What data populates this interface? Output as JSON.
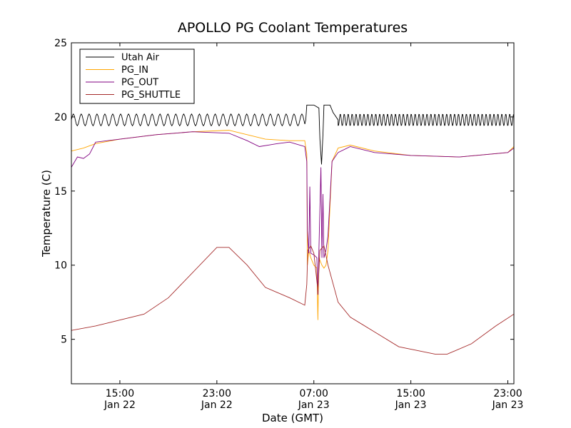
{
  "chart_data": {
    "type": "line",
    "title": "APOLLO PG Coolant Temperatures",
    "xlabel": "Date (GMT)",
    "ylabel": "Temperature (C)",
    "xlim": [
      "2013-01-22T11:00",
      "2013-01-23T23:30"
    ],
    "ylim": [
      2,
      25
    ],
    "grid": false,
    "legend_position": "top-left",
    "x_ticks": [
      {
        "time": "2013-01-22T15:00",
        "line1": "15:00",
        "line2": "Jan 22"
      },
      {
        "time": "2013-01-22T23:00",
        "line1": "23:00",
        "line2": "Jan 22"
      },
      {
        "time": "2013-01-23T07:00",
        "line1": "07:00",
        "line2": "Jan 23"
      },
      {
        "time": "2013-01-23T15:00",
        "line1": "15:00",
        "line2": "Jan 23"
      },
      {
        "time": "2013-01-23T23:00",
        "line1": "23:00",
        "line2": "Jan 23"
      }
    ],
    "y_ticks": [
      5,
      10,
      15,
      20,
      25
    ],
    "series": [
      {
        "name": "Utah Air",
        "color": "#000000",
        "oscillation": {
          "period_hours": 0.65,
          "amplitude": 0.4
        },
        "points": [
          [
            "2013-01-22T11:00",
            19.8
          ],
          [
            "2013-01-23T06:20",
            19.8
          ],
          [
            "2013-01-23T06:25",
            20.8
          ],
          [
            "2013-01-23T07:00",
            20.8
          ],
          [
            "2013-01-23T07:25",
            20.6
          ],
          [
            "2013-01-23T07:30",
            18.5
          ],
          [
            "2013-01-23T07:38",
            16.8
          ],
          [
            "2013-01-23T07:45",
            18.8
          ],
          [
            "2013-01-23T07:50",
            20.8
          ],
          [
            "2013-01-23T08:20",
            20.8
          ],
          [
            "2013-01-23T08:35",
            20.3
          ],
          [
            "2013-01-23T09:00",
            19.8
          ],
          [
            "2013-01-23T23:30",
            19.8
          ]
        ]
      },
      {
        "name": "PG_IN",
        "color": "#FFA500",
        "points": [
          [
            "2013-01-22T11:00",
            17.7
          ],
          [
            "2013-01-22T12:00",
            17.9
          ],
          [
            "2013-01-22T13:00",
            18.2
          ],
          [
            "2013-01-22T15:00",
            18.5
          ],
          [
            "2013-01-22T18:00",
            18.8
          ],
          [
            "2013-01-22T21:00",
            19.0
          ],
          [
            "2013-01-23T00:00",
            19.1
          ],
          [
            "2013-01-23T01:30",
            18.8
          ],
          [
            "2013-01-23T03:00",
            18.5
          ],
          [
            "2013-01-23T05:00",
            18.4
          ],
          [
            "2013-01-23T06:15",
            18.4
          ],
          [
            "2013-01-23T06:25",
            17.5
          ],
          [
            "2013-01-23T06:28",
            10.0
          ],
          [
            "2013-01-23T06:35",
            11.0
          ],
          [
            "2013-01-23T06:45",
            10.5
          ],
          [
            "2013-01-23T07:00",
            10.0
          ],
          [
            "2013-01-23T07:15",
            9.8
          ],
          [
            "2013-01-23T07:20",
            6.3
          ],
          [
            "2013-01-23T07:25",
            10.5
          ],
          [
            "2013-01-23T07:40",
            10.0
          ],
          [
            "2013-01-23T07:50",
            9.8
          ],
          [
            "2013-01-23T08:00",
            10.0
          ],
          [
            "2013-01-23T08:10",
            11.0
          ],
          [
            "2013-01-23T08:30",
            17.0
          ],
          [
            "2013-01-23T09:00",
            17.9
          ],
          [
            "2013-01-23T10:00",
            18.1
          ],
          [
            "2013-01-23T12:00",
            17.7
          ],
          [
            "2013-01-23T15:00",
            17.4
          ],
          [
            "2013-01-23T19:00",
            17.3
          ],
          [
            "2013-01-23T23:00",
            17.6
          ],
          [
            "2013-01-23T23:30",
            18.0
          ]
        ]
      },
      {
        "name": "PG_OUT",
        "color": "#800080",
        "points": [
          [
            "2013-01-22T11:00",
            16.6
          ],
          [
            "2013-01-22T11:30",
            17.3
          ],
          [
            "2013-01-22T12:00",
            17.2
          ],
          [
            "2013-01-22T12:30",
            17.5
          ],
          [
            "2013-01-22T13:00",
            18.3
          ],
          [
            "2013-01-22T15:00",
            18.5
          ],
          [
            "2013-01-22T18:00",
            18.8
          ],
          [
            "2013-01-22T21:00",
            19.0
          ],
          [
            "2013-01-23T00:00",
            18.9
          ],
          [
            "2013-01-23T01:30",
            18.4
          ],
          [
            "2013-01-23T02:30",
            18.0
          ],
          [
            "2013-01-23T04:00",
            18.2
          ],
          [
            "2013-01-23T05:00",
            18.3
          ],
          [
            "2013-01-23T06:15",
            18.0
          ],
          [
            "2013-01-23T06:25",
            17.0
          ],
          [
            "2013-01-23T06:28",
            12.3
          ],
          [
            "2013-01-23T06:35",
            10.8
          ],
          [
            "2013-01-23T06:40",
            15.3
          ],
          [
            "2013-01-23T06:45",
            10.8
          ],
          [
            "2013-01-23T07:00",
            10.7
          ],
          [
            "2013-01-23T07:15",
            10.5
          ],
          [
            "2013-01-23T07:20",
            8.0
          ],
          [
            "2013-01-23T07:25",
            11.0
          ],
          [
            "2013-01-23T07:35",
            16.6
          ],
          [
            "2013-01-23T07:40",
            10.5
          ],
          [
            "2013-01-23T07:45",
            14.8
          ],
          [
            "2013-01-23T07:50",
            10.5
          ],
          [
            "2013-01-23T08:00",
            11.0
          ],
          [
            "2013-01-23T08:10",
            12.0
          ],
          [
            "2013-01-23T08:30",
            17.0
          ],
          [
            "2013-01-23T09:00",
            17.6
          ],
          [
            "2013-01-23T10:00",
            18.0
          ],
          [
            "2013-01-23T12:00",
            17.6
          ],
          [
            "2013-01-23T15:00",
            17.4
          ],
          [
            "2013-01-23T19:00",
            17.3
          ],
          [
            "2013-01-23T23:00",
            17.6
          ],
          [
            "2013-01-23T23:30",
            17.9
          ]
        ]
      },
      {
        "name": "PG_SHUTTLE",
        "color": "#A52A2A",
        "points": [
          [
            "2013-01-22T11:00",
            5.6
          ],
          [
            "2013-01-22T13:00",
            5.9
          ],
          [
            "2013-01-22T17:00",
            6.7
          ],
          [
            "2013-01-22T19:00",
            7.8
          ],
          [
            "2013-01-22T21:00",
            9.5
          ],
          [
            "2013-01-22T23:00",
            11.2
          ],
          [
            "2013-01-23T00:00",
            11.2
          ],
          [
            "2013-01-23T01:30",
            10.0
          ],
          [
            "2013-01-23T03:00",
            8.5
          ],
          [
            "2013-01-23T05:00",
            7.8
          ],
          [
            "2013-01-23T06:15",
            7.3
          ],
          [
            "2013-01-23T06:25",
            8.7
          ],
          [
            "2013-01-23T06:30",
            11.0
          ],
          [
            "2013-01-23T06:45",
            11.3
          ],
          [
            "2013-01-23T07:00",
            10.8
          ],
          [
            "2013-01-23T07:20",
            8.3
          ],
          [
            "2013-01-23T07:30",
            11.0
          ],
          [
            "2013-01-23T07:50",
            11.3
          ],
          [
            "2013-01-23T08:10",
            10.0
          ],
          [
            "2013-01-23T09:00",
            7.5
          ],
          [
            "2013-01-23T10:00",
            6.5
          ],
          [
            "2013-01-23T12:00",
            5.5
          ],
          [
            "2013-01-23T14:00",
            4.5
          ],
          [
            "2013-01-23T17:00",
            4.0
          ],
          [
            "2013-01-23T18:00",
            4.0
          ],
          [
            "2013-01-23T20:00",
            4.7
          ],
          [
            "2013-01-23T22:00",
            5.9
          ],
          [
            "2013-01-23T23:30",
            6.7
          ]
        ]
      }
    ]
  }
}
